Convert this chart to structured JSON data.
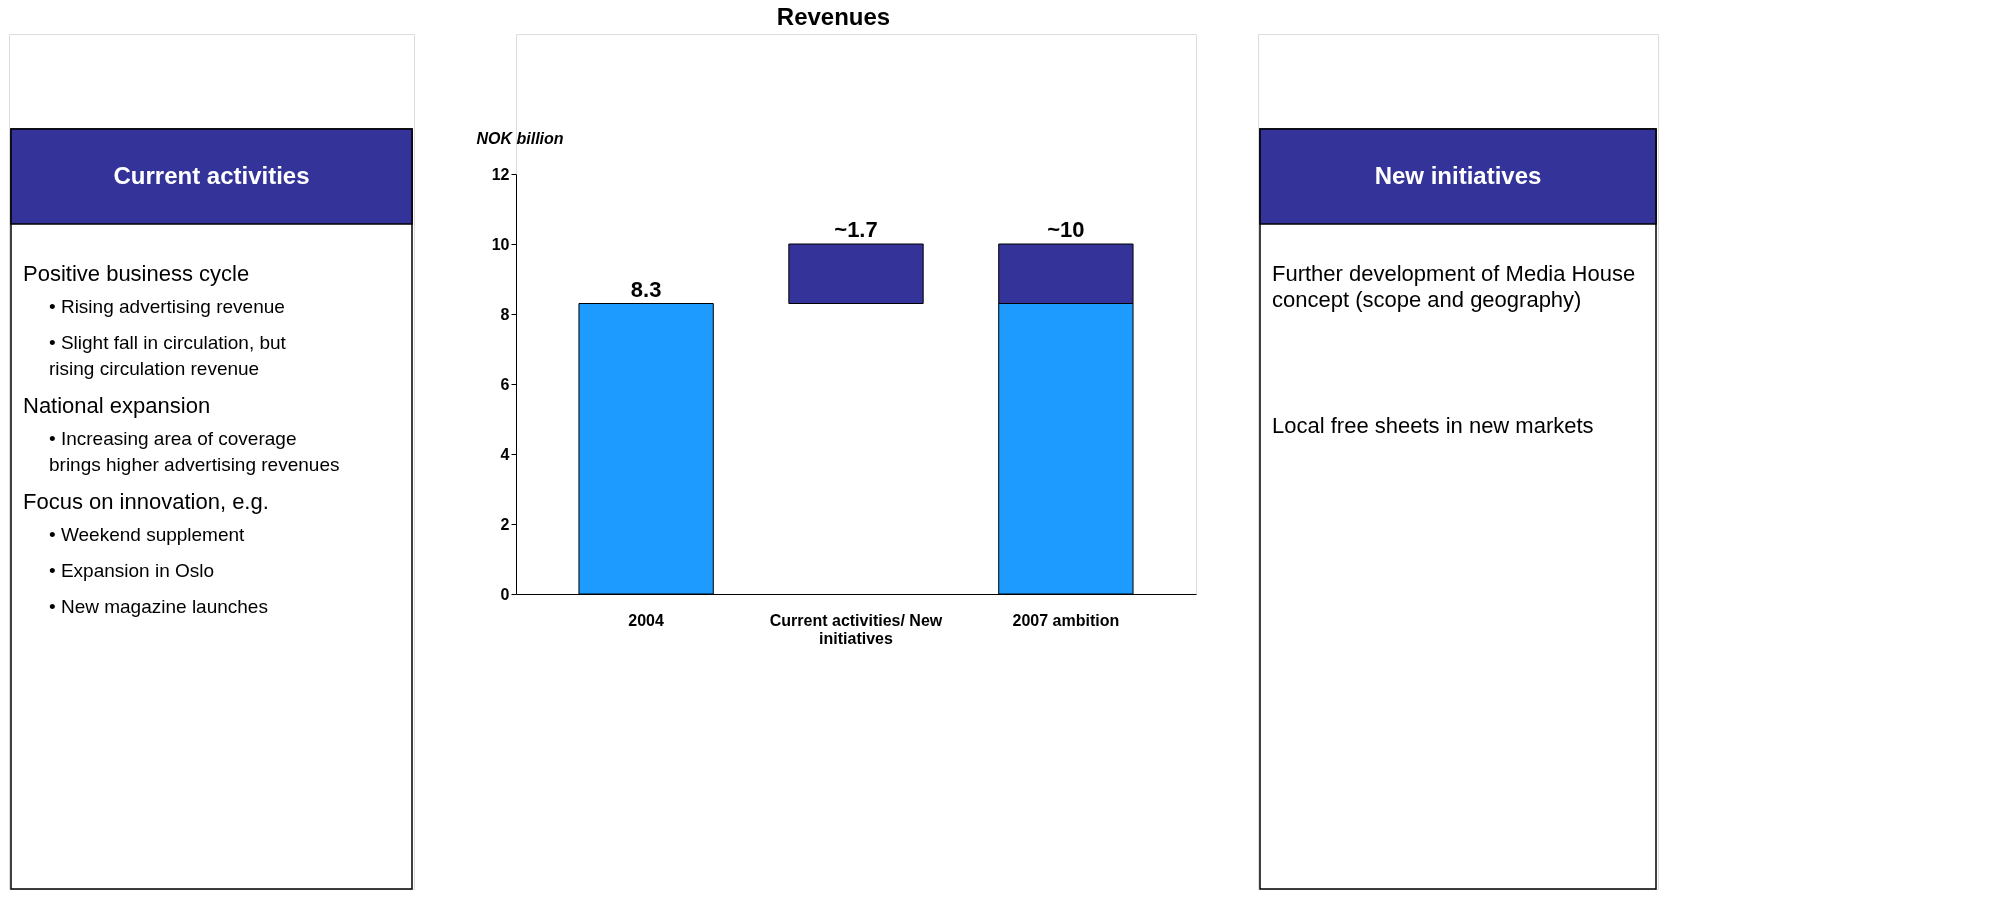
{
  "chart_data": {
    "type": "bar",
    "title": "Revenues",
    "ylabel": "NOK billion",
    "categories": [
      "2004",
      "Current activities/ New initiatives",
      "2007 ambition"
    ],
    "series": [
      {
        "color": "#1e9bff",
        "values": [
          8.3,
          null,
          8.3
        ],
        "value_labels": [
          "8.3",
          null,
          null
        ]
      },
      {
        "color": "#333399",
        "values": [
          null,
          1.7,
          1.7
        ],
        "base": [
          null,
          8.3,
          8.3
        ],
        "value_labels": [
          null,
          "~1.7",
          "~10"
        ]
      }
    ],
    "ylim": [
      0,
      12
    ],
    "yticks": [
      0,
      2,
      4,
      6,
      8,
      10,
      12
    ],
    "grid": false,
    "annotations": [
      "Current activities",
      "Positive business cycle",
      "• Rising advertising revenue",
      "• Slight fall in circulation, but rising circulation revenue",
      "National expansion",
      "• Increasing area of coverage brings higher advertising revenues",
      "Focus on innovation, e.g.",
      "• Weekend supplement",
      "• Expansion in Oslo",
      "• New magazine launches",
      "New initiatives",
      "Further development of Media House concept (scope and geography)",
      "Local free sheets in new markets"
    ]
  }
}
